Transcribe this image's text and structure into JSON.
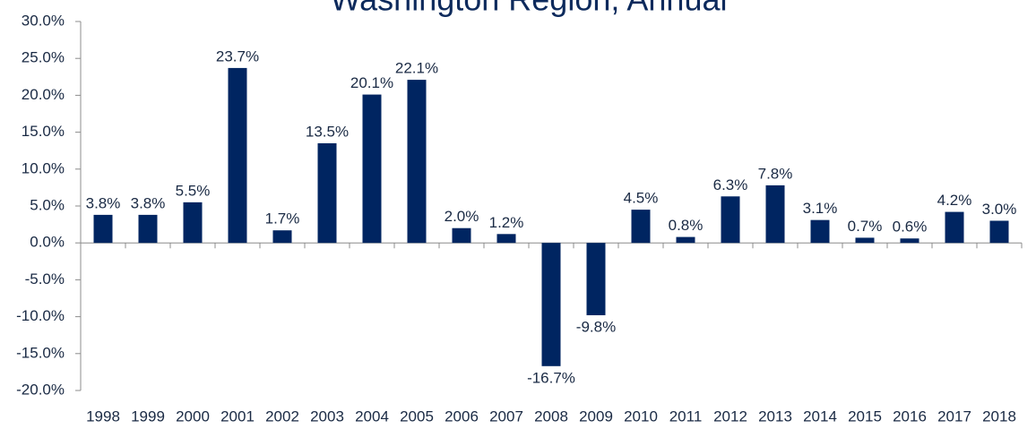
{
  "chart_data": {
    "type": "bar",
    "title": "Washington Region, Annual",
    "categories": [
      "1998",
      "1999",
      "2000",
      "2001",
      "2002",
      "2003",
      "2004",
      "2005",
      "2006",
      "2007",
      "2008",
      "2009",
      "2010",
      "2011",
      "2012",
      "2013",
      "2014",
      "2015",
      "2016",
      "2017",
      "2018"
    ],
    "values": [
      3.8,
      3.8,
      5.5,
      23.7,
      1.7,
      13.5,
      20.1,
      22.1,
      2.0,
      1.2,
      -16.7,
      -9.8,
      4.5,
      0.8,
      6.3,
      7.8,
      3.1,
      0.7,
      0.6,
      4.2,
      3.0
    ],
    "value_labels": [
      "3.8%",
      "3.8%",
      "5.5%",
      "23.7%",
      "1.7%",
      "13.5%",
      "20.1%",
      "22.1%",
      "2.0%",
      "1.2%",
      "-16.7%",
      "-9.8%",
      "4.5%",
      "0.8%",
      "6.3%",
      "7.8%",
      "3.1%",
      "0.7%",
      "0.6%",
      "4.2%",
      "3.0%"
    ],
    "color": "#002561",
    "ylim": [
      -20,
      30
    ],
    "yticks": [
      {
        "value": -20,
        "label": "-20.0%"
      },
      {
        "value": -15,
        "label": "-15.0%"
      },
      {
        "value": -10,
        "label": "-10.0%"
      },
      {
        "value": -5,
        "label": "-5.0%"
      },
      {
        "value": 0,
        "label": "0.0%"
      },
      {
        "value": 5,
        "label": "5.0%"
      },
      {
        "value": 10,
        "label": "10.0%"
      },
      {
        "value": 15,
        "label": "15.0%"
      },
      {
        "value": 20,
        "label": "20.0%"
      },
      {
        "value": 25,
        "label": "25.0%"
      },
      {
        "value": 30,
        "label": "30.0%"
      }
    ],
    "grid": false
  }
}
